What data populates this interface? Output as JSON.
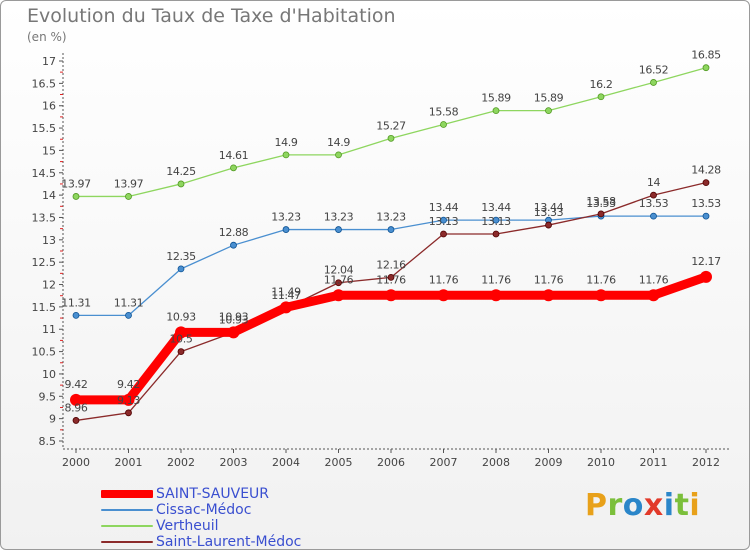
{
  "header": {
    "title": "Evolution du Taux de Taxe d'Habitation",
    "subtitle": "(en %)"
  },
  "brand": {
    "text": "Proxiti",
    "colors": [
      "#e8a11a",
      "#7bbf3b",
      "#2b86c9",
      "#e23a2a",
      "#2b86c9",
      "#7bbf3b",
      "#e8a11a"
    ]
  },
  "chart_data": {
    "type": "line",
    "title": "Evolution du Taux de Taxe d'Habitation",
    "subtitle": "(en %)",
    "x": [
      "2000",
      "2001",
      "2002",
      "2003",
      "2004",
      "2005",
      "2006",
      "2007",
      "2008",
      "2009",
      "2010",
      "2011",
      "2012"
    ],
    "ylim": [
      8.5,
      17
    ],
    "yticks": [
      "8.5",
      "9",
      "9.5",
      "10",
      "10.5",
      "11",
      "11.5",
      "12",
      "12.5",
      "13",
      "13.5",
      "14",
      "14.5",
      "15",
      "15.5",
      "16",
      "16.5",
      "17"
    ],
    "grid": false,
    "legend_position": "bottom-left",
    "series": [
      {
        "name": "SAINT-SAUVEUR",
        "color": "#ff0000",
        "values": [
          9.42,
          9.42,
          10.93,
          10.93,
          11.49,
          11.76,
          11.76,
          11.76,
          11.76,
          11.76,
          11.76,
          11.76,
          12.17
        ],
        "labels": [
          "9.42",
          "9.42",
          "10.93",
          "10.93",
          "11.49",
          "11.76",
          "11.76",
          "11.76",
          "11.76",
          "11.76",
          "11.76",
          "11.76",
          "12.17"
        ]
      },
      {
        "name": "Cissac-Médoc",
        "color": "#4a8fd0",
        "values": [
          11.31,
          11.31,
          12.35,
          12.88,
          13.23,
          13.23,
          13.23,
          13.44,
          13.44,
          13.44,
          13.53,
          13.53,
          13.53
        ],
        "labels": [
          "11.31",
          "11.31",
          "12.35",
          "12.88",
          "13.23",
          "13.23",
          "13.23",
          "13.44",
          "13.44",
          "13.44",
          "13.53",
          "13.53",
          "13.53"
        ]
      },
      {
        "name": "Vertheuil",
        "color": "#8ed65f",
        "values": [
          13.97,
          13.97,
          14.25,
          14.61,
          14.9,
          14.9,
          15.27,
          15.58,
          15.89,
          15.89,
          16.2,
          16.52,
          16.85
        ],
        "labels": [
          "13.97",
          "13.97",
          "14.25",
          "14.61",
          "14.9",
          "14.9",
          "15.27",
          "15.58",
          "15.89",
          "15.89",
          "16.2",
          "16.52",
          "16.85"
        ]
      },
      {
        "name": "Saint-Laurent-Médoc",
        "color": "#8b2a2a",
        "values": [
          8.96,
          9.13,
          10.5,
          10.93,
          11.47,
          12.04,
          12.16,
          13.13,
          13.13,
          13.33,
          13.58,
          14.0,
          14.28
        ],
        "labels": [
          "8.96",
          "9.13",
          "10.5",
          "10.93",
          "11.47",
          "12.04",
          "12.16",
          "13.13",
          "13.13",
          "13.33",
          "13.58",
          "14",
          "14.28"
        ]
      }
    ]
  }
}
